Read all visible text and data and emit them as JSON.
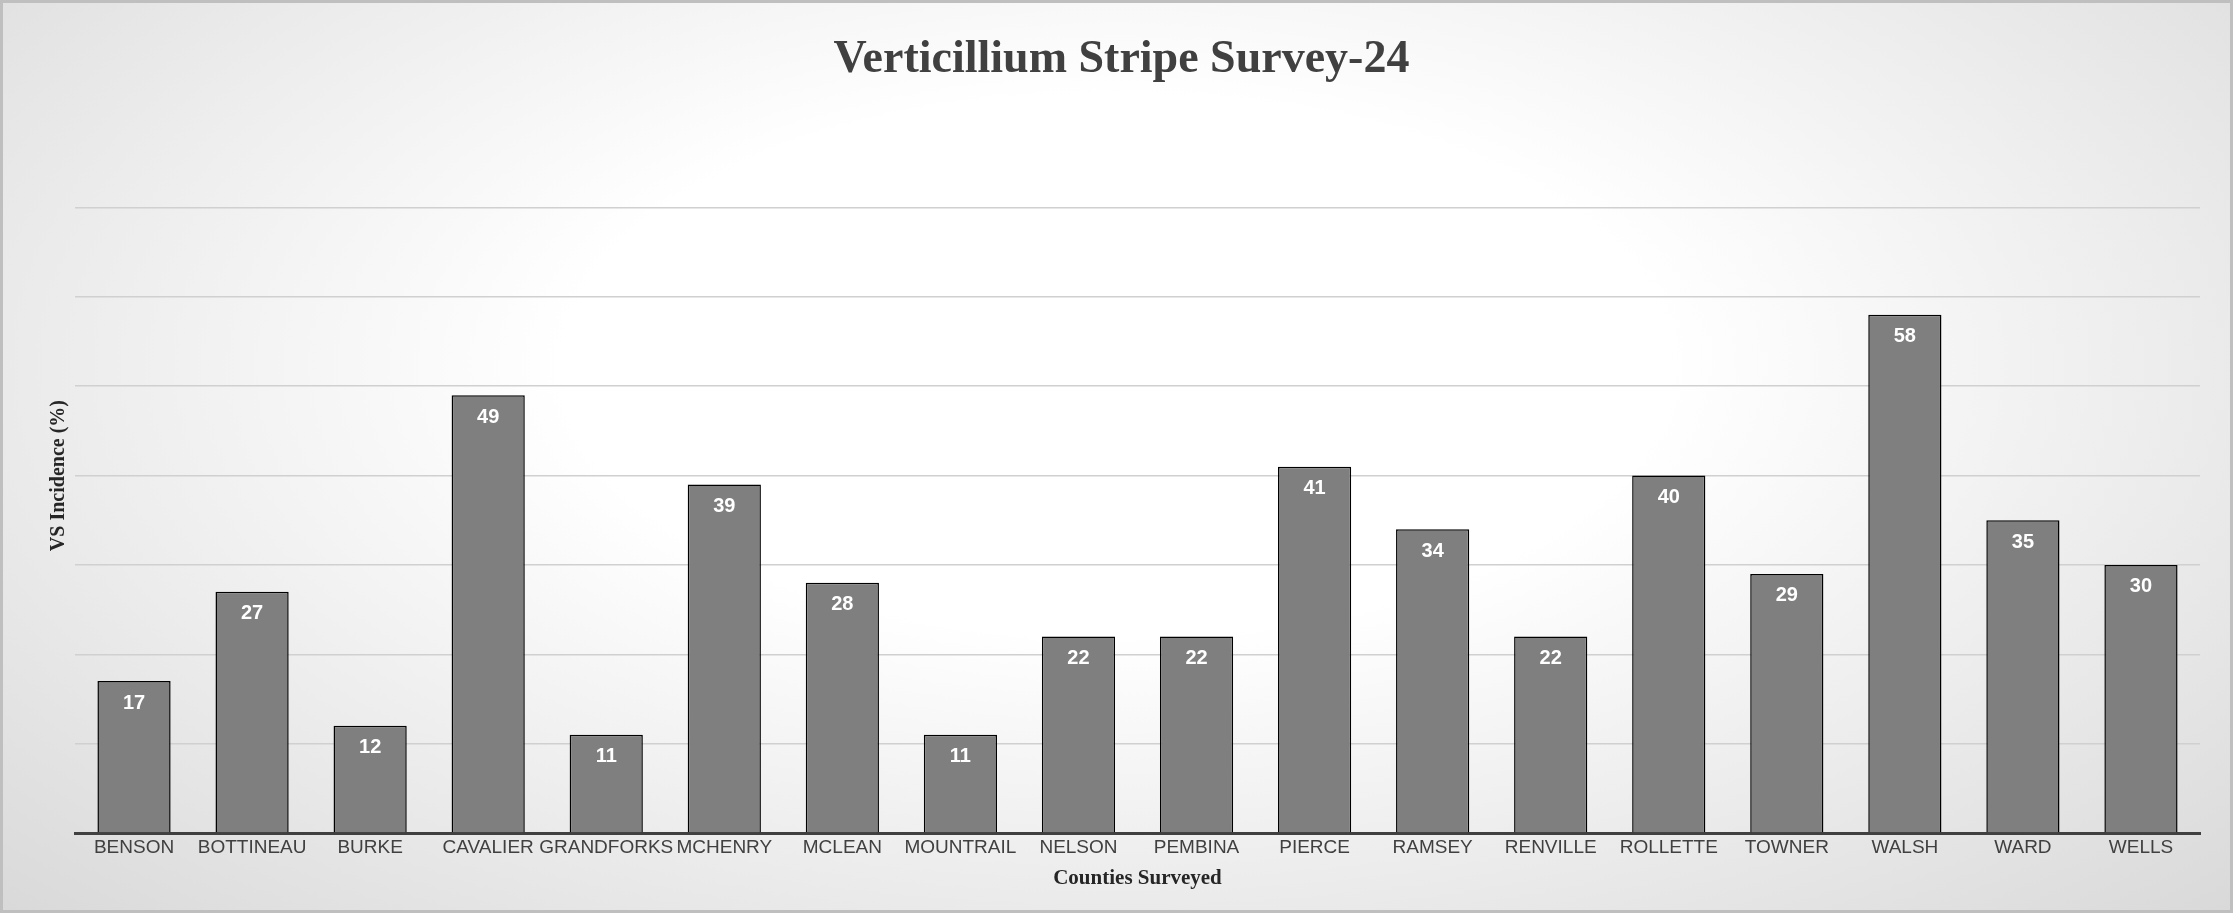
{
  "chart_data": {
    "type": "bar",
    "title": "Verticillium Stripe Survey-24",
    "xlabel": "Counties Surveyed",
    "ylabel": "VS Incidence (%)",
    "categories": [
      "BENSON",
      "BOTTINEAU",
      "BURKE",
      "CAVALIER",
      "GRANDFORKS",
      "MCHENRY",
      "MCLEAN",
      "MOUNTRAIL",
      "NELSON",
      "PEMBINA",
      "PIERCE",
      "RAMSEY",
      "RENVILLE",
      "ROLLETTE",
      "TOWNER",
      "WALSH",
      "WARD",
      "WELLS"
    ],
    "values": [
      17,
      27,
      12,
      49,
      11,
      39,
      28,
      11,
      22,
      22,
      41,
      34,
      22,
      40,
      29,
      58,
      35,
      30
    ],
    "color": "#7f7f7f",
    "grid": "y",
    "tick_labels": "x",
    "data_labels": true,
    "legend": false
  }
}
